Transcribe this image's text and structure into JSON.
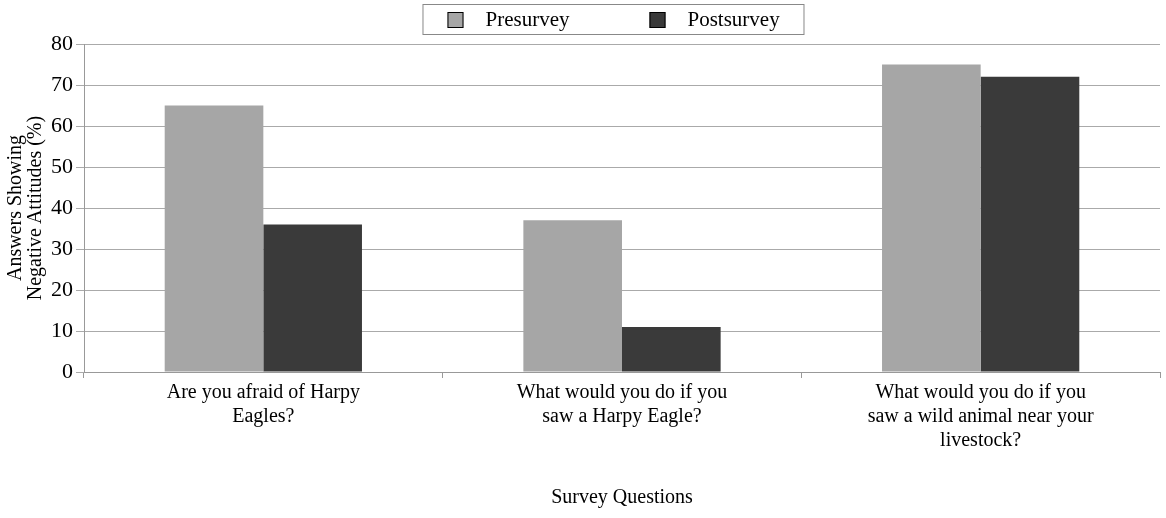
{
  "chart_data": {
    "type": "bar",
    "xlabel": "Survey Questions",
    "ylabel": "Answers Showing Negative Attitudes (%)",
    "categories": [
      "Are you afraid of Harpy Eagles?",
      "What would you do if you saw a Harpy Eagle?",
      "What would you do if you saw a wild animal near your livestock?"
    ],
    "series": [
      {
        "name": "Presurvey",
        "color": "#a6a6a6",
        "values": [
          65,
          37,
          75
        ]
      },
      {
        "name": "Postsurvey",
        "color": "#3a3a3a",
        "values": [
          36,
          11,
          72
        ]
      }
    ],
    "ylim": [
      0,
      80
    ],
    "yticks": [
      0,
      10,
      20,
      30,
      40,
      50,
      60,
      70,
      80
    ],
    "grid": "y",
    "legend": "top"
  }
}
